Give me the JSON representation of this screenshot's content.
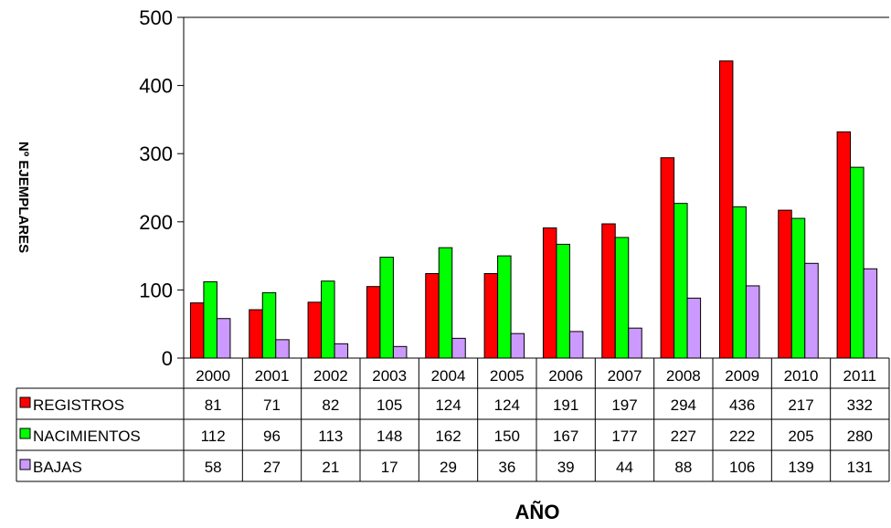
{
  "chart_data": {
    "type": "bar",
    "xlabel": "AÑO",
    "ylabel": "Nº EJEMPLARES",
    "ylim": [
      0,
      500
    ],
    "yticks": [
      0,
      100,
      200,
      300,
      400,
      500
    ],
    "grid": false,
    "legend": "data-table-left",
    "categories": [
      "2000",
      "2001",
      "2002",
      "2003",
      "2004",
      "2005",
      "2006",
      "2007",
      "2008",
      "2009",
      "2010",
      "2011"
    ],
    "series": [
      {
        "name": "REGISTROS",
        "color": "#ff0000",
        "values": [
          81,
          71,
          82,
          105,
          124,
          124,
          191,
          197,
          294,
          436,
          217,
          332
        ]
      },
      {
        "name": "NACIMIENTOS",
        "color": "#00ff00",
        "values": [
          112,
          96,
          113,
          148,
          162,
          150,
          167,
          177,
          227,
          222,
          205,
          280
        ]
      },
      {
        "name": "BAJAS",
        "color": "#cc99ff",
        "values": [
          58,
          27,
          21,
          17,
          29,
          36,
          39,
          44,
          88,
          106,
          139,
          131
        ]
      }
    ]
  }
}
